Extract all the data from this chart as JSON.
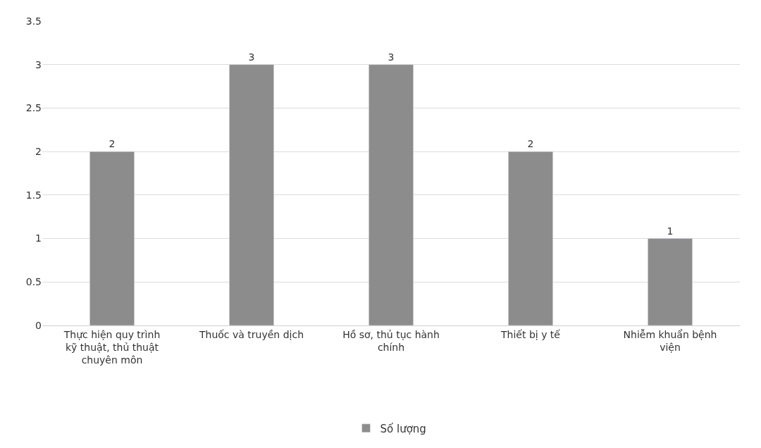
{
  "chart_data": {
    "type": "bar",
    "categories": [
      "Thực hiện quy trình kỹ thuật, thủ thuật chuyên môn",
      "Thuốc và truyền dịch",
      "Hồ sơ, thủ tục hành chính",
      "Thiết bị y tế",
      "Nhiễm khuẩn bệnh viện"
    ],
    "series": [
      {
        "name": "Số lượng",
        "color": "#8c8c8c",
        "values": [
          2,
          3,
          3,
          2,
          1
        ]
      }
    ],
    "ylim": [
      0,
      3.5
    ],
    "yticks": [
      0,
      0.5,
      1,
      1.5,
      2,
      2.5,
      3,
      3.5
    ],
    "grid": "y",
    "legend": "bottom",
    "data_labels": true
  }
}
